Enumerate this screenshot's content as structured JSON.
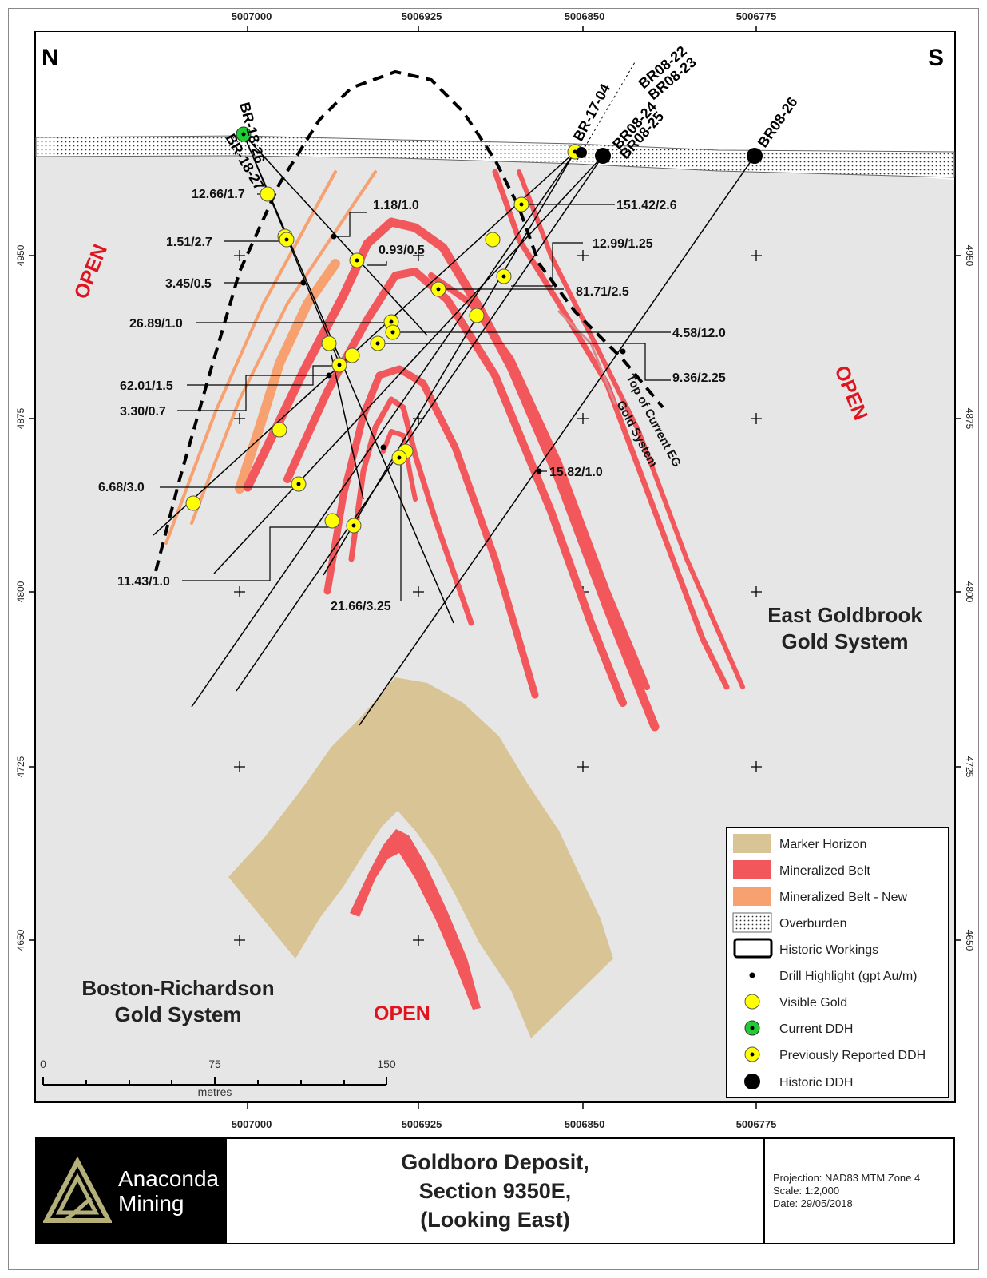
{
  "map": {
    "north_label": "N",
    "south_label": "S",
    "top_x_ticks": [
      "5007000",
      "5006925",
      "5006850",
      "5006775"
    ],
    "bottom_x_ticks": [
      "5007000",
      "5006925",
      "5006850",
      "5006775"
    ],
    "y_ticks": [
      "4950",
      "4875",
      "4800",
      "4725",
      "4650"
    ],
    "open_labels": [
      "OPEN",
      "OPEN",
      "OPEN"
    ],
    "drill_holes": {
      "br_18_27": "BR-18-27",
      "br_18_26": "BR-18-26",
      "br_17_04": "BR-17-04",
      "br08_22": "BR08-22",
      "br08_23": "BR08-23",
      "br08_24": "BR08-24",
      "br08_25": "BR08-25",
      "br08_26": "BR08-26"
    },
    "intercepts": {
      "i1": "12.66/1.7",
      "i2": "1.18/1.0",
      "i3": "1.51/2.7",
      "i4": "0.93/0.5",
      "i5": "3.45/0.5",
      "i6": "26.89/1.0",
      "i7": "62.01/1.5",
      "i8": "3.30/0.7",
      "i9": "6.68/3.0",
      "i10": "11.43/1.0",
      "i11": "21.66/3.25",
      "i12": "151.42/2.6",
      "i13": "12.99/1.25",
      "i14": "81.71/2.5",
      "i15": "4.58/12.0",
      "i16": "9.36/2.25",
      "i17": "15.82/1.0"
    },
    "top_system_label": [
      "Top of Current EG",
      "Gold System"
    ],
    "east_system": [
      "East Goldbrook",
      "Gold System"
    ],
    "west_system": [
      "Boston-Richardson",
      "Gold System"
    ],
    "scale_bar": {
      "labels": [
        "0",
        "75",
        "150"
      ],
      "unit": "metres"
    }
  },
  "legend": {
    "items": [
      {
        "label": "Marker Horizon",
        "swatch": "#d9c496"
      },
      {
        "label": "Mineralized Belt",
        "swatch": "#f2575c"
      },
      {
        "label": "Mineralized Belt - New",
        "swatch": "#f7a070"
      },
      {
        "label": "Overburden",
        "swatch": "dotted"
      },
      {
        "label": "Historic Workings",
        "swatch": "outline"
      },
      {
        "label": "Drill Highlight (gpt Au/m)",
        "swatch": "small-dot"
      },
      {
        "label": "Visible Gold",
        "swatch": "#ffff00"
      },
      {
        "label": "Current DDH",
        "swatch": "#22cc33"
      },
      {
        "label": "Previously Reported DDH",
        "swatch": "yellow-dot"
      },
      {
        "label": "Historic DDH",
        "swatch": "#000000"
      }
    ]
  },
  "title_block": {
    "logo_line1": "Anaconda",
    "logo_line2": "Mining",
    "title_lines": [
      "Goldboro Deposit,",
      "Section 9350E,",
      "(Looking East)"
    ],
    "projection": "Projection: NAD83 MTM Zone 4",
    "scale": "Scale: 1:2,000",
    "date": "Date: 29/05/2018"
  }
}
